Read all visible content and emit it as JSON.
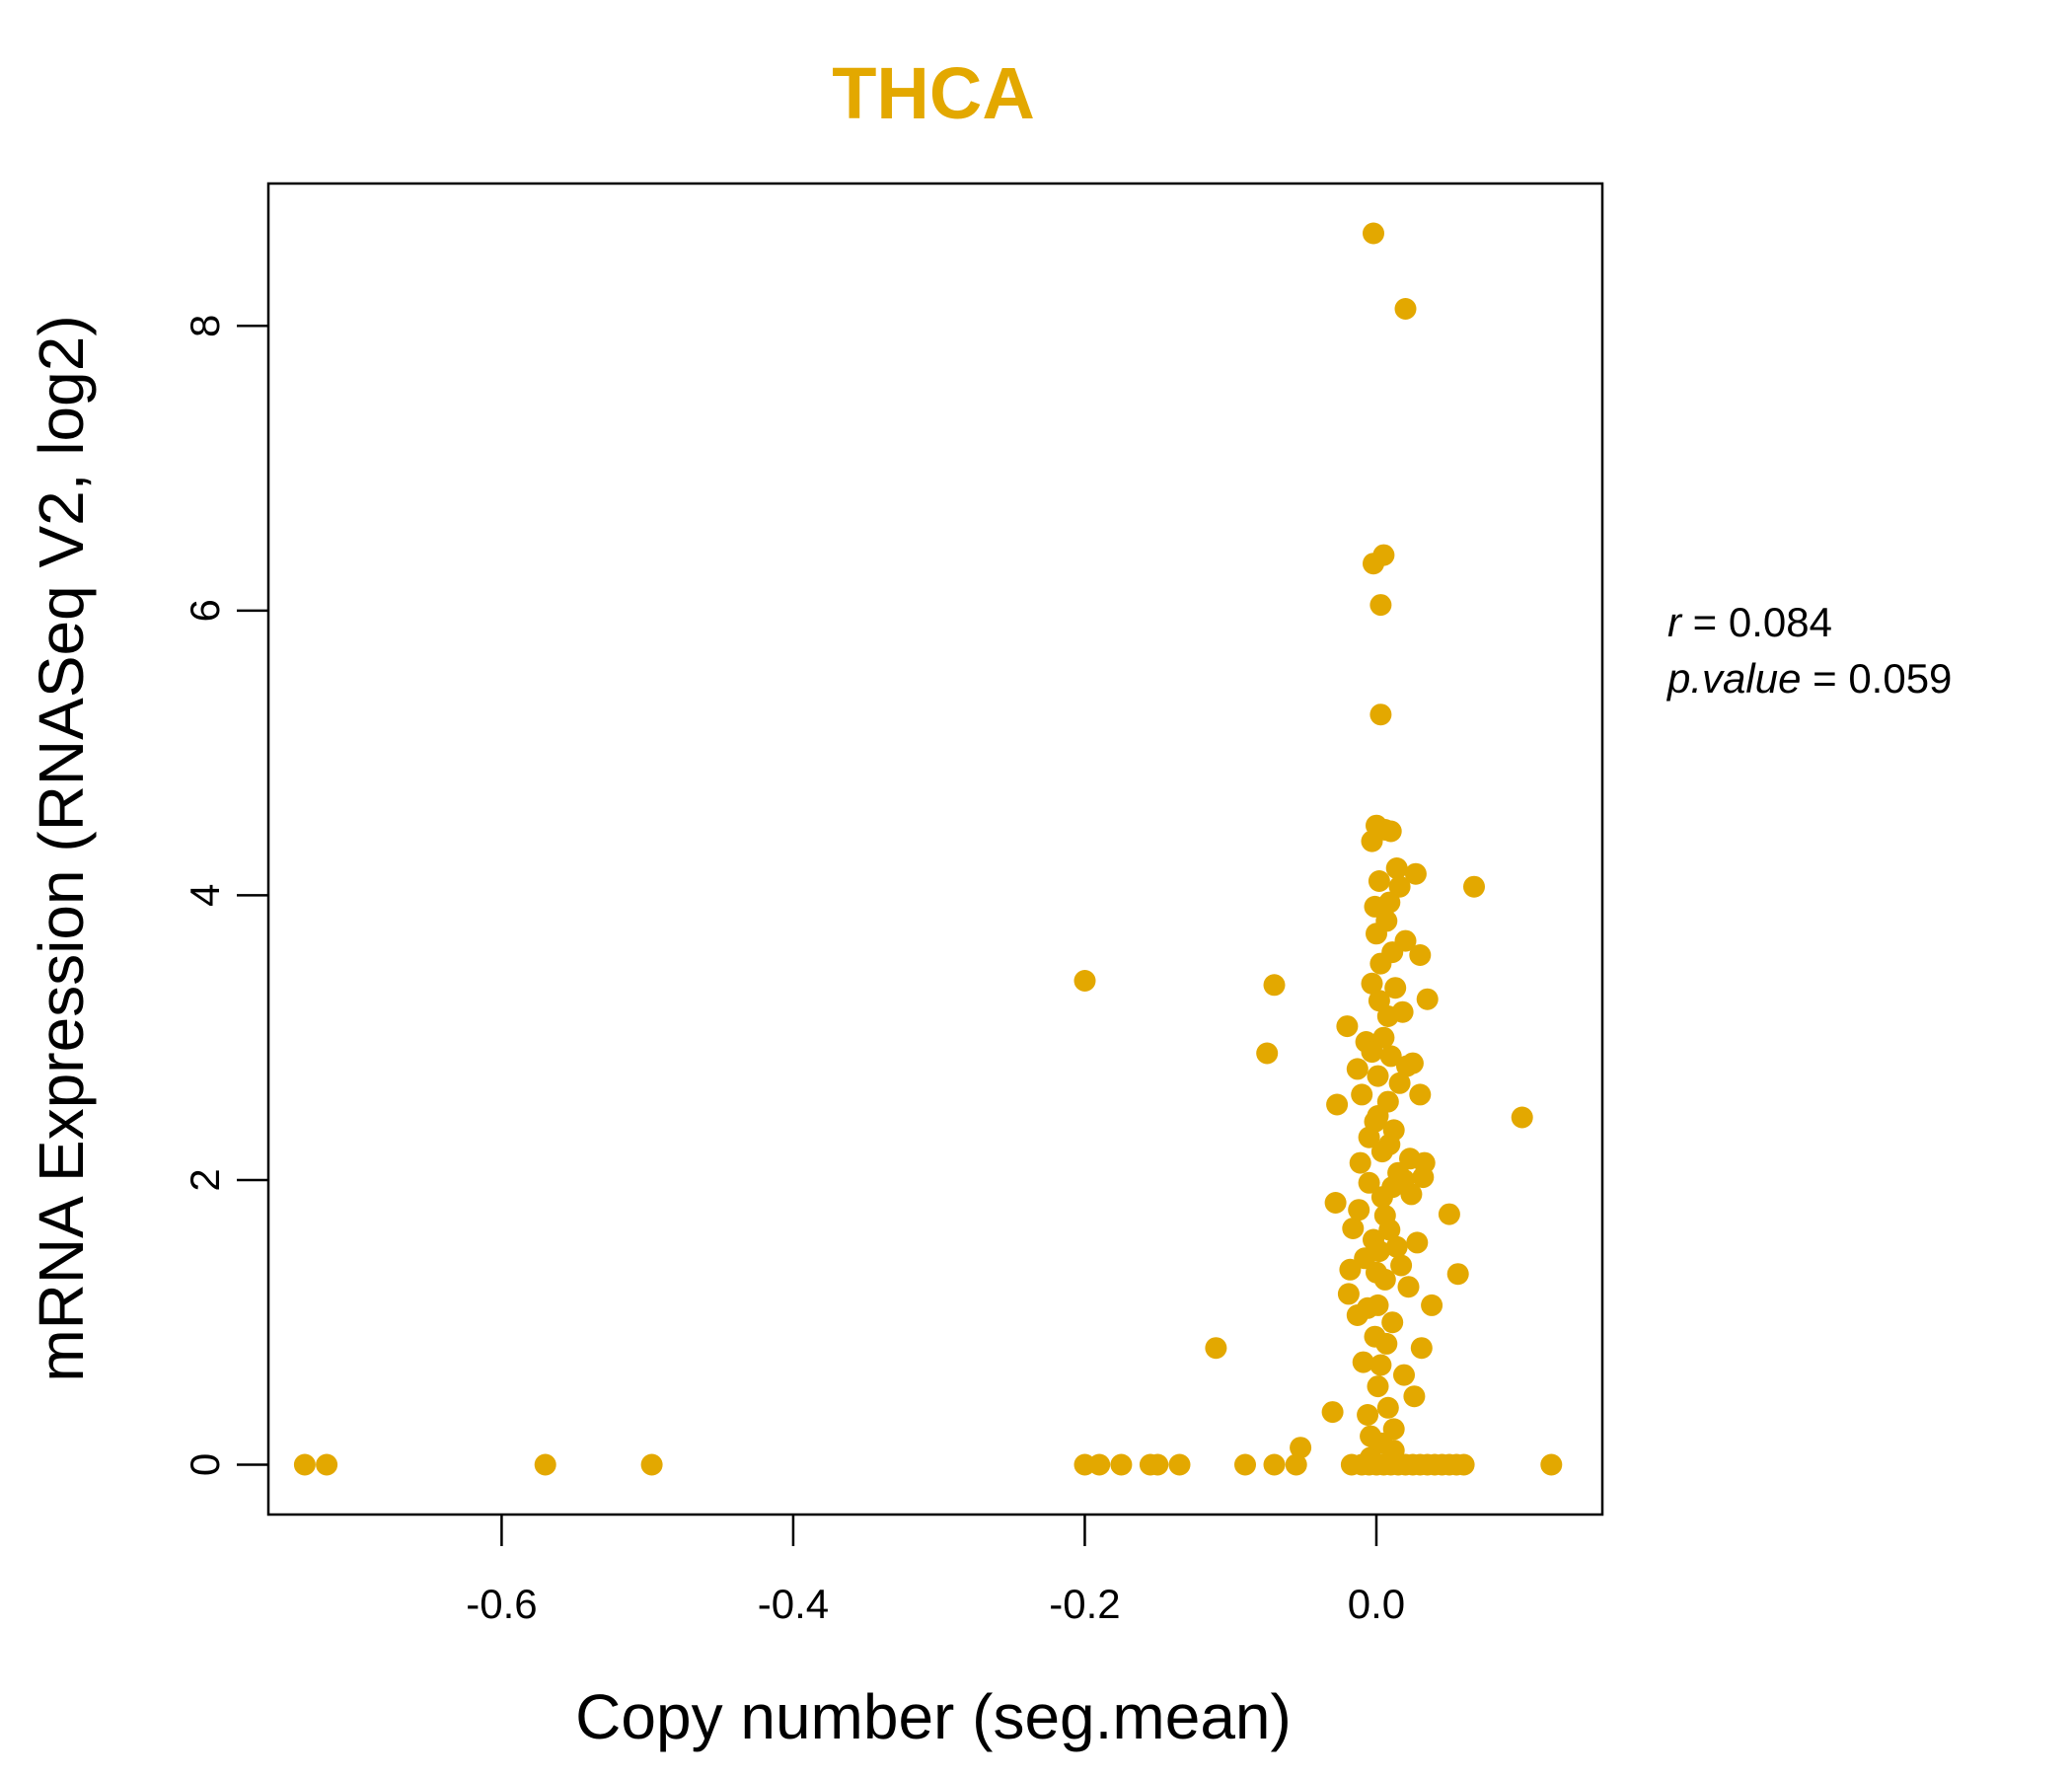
{
  "chart_data": {
    "type": "scatter",
    "title": "THCA",
    "xlabel": "Copy number (seg.mean)",
    "ylabel": "mRNA Expression (RNASeq V2, log2)",
    "xlim": [
      -0.76,
      0.155
    ],
    "ylim": [
      -0.35,
      9.0
    ],
    "x_ticks": [
      -0.6,
      -0.4,
      -0.2,
      0.0
    ],
    "x_tick_labels": [
      "-0.6",
      "-0.4",
      "-0.2",
      "0.0"
    ],
    "y_ticks": [
      0,
      2,
      4,
      6,
      8
    ],
    "y_tick_labels": [
      "0",
      "2",
      "4",
      "6",
      "8"
    ],
    "grid": false,
    "legend": "none",
    "point_color": "#E3A800",
    "stats": {
      "r_label": "r",
      "r_value": "0.084",
      "p_label": "p.value",
      "p_value": "0.059"
    },
    "series": [
      {
        "points": [
          [
            -0.735,
            0.0
          ],
          [
            -0.72,
            0.0
          ],
          [
            -0.57,
            0.0
          ],
          [
            -0.497,
            0.0
          ],
          [
            -0.2,
            3.4
          ],
          [
            -0.2,
            0.0
          ],
          [
            -0.19,
            0.0
          ],
          [
            -0.175,
            0.0
          ],
          [
            -0.155,
            0.0
          ],
          [
            -0.15,
            0.0
          ],
          [
            -0.135,
            0.0
          ],
          [
            -0.11,
            0.82
          ],
          [
            -0.09,
            0.0
          ],
          [
            -0.075,
            2.89
          ],
          [
            -0.07,
            3.37
          ],
          [
            -0.07,
            0.0
          ],
          [
            -0.055,
            0.0
          ],
          [
            -0.052,
            0.12
          ],
          [
            -0.03,
            0.37
          ],
          [
            -0.028,
            1.84
          ],
          [
            -0.027,
            2.53
          ],
          [
            -0.02,
            3.08
          ],
          [
            -0.019,
            1.2
          ],
          [
            -0.018,
            1.37
          ],
          [
            -0.017,
            0.0
          ],
          [
            -0.016,
            1.66
          ],
          [
            -0.013,
            2.78
          ],
          [
            -0.013,
            1.05
          ],
          [
            -0.012,
            1.79
          ],
          [
            -0.011,
            2.12
          ],
          [
            -0.01,
            2.6
          ],
          [
            -0.009,
            0.72
          ],
          [
            -0.008,
            1.45
          ],
          [
            -0.007,
            2.97
          ],
          [
            -0.006,
            0.35
          ],
          [
            -0.005,
            1.98
          ],
          [
            -0.005,
            2.3
          ],
          [
            -0.004,
            0.05
          ],
          [
            -0.003,
            4.38
          ],
          [
            -0.003,
            3.38
          ],
          [
            -0.002,
            6.33
          ],
          [
            -0.002,
            1.58
          ],
          [
            -0.001,
            3.92
          ],
          [
            -0.001,
            2.41
          ],
          [
            0.0,
            3.73
          ],
          [
            0.0,
            4.49
          ],
          [
            0.001,
            2.73
          ],
          [
            0.001,
            1.12
          ],
          [
            0.001,
            0.55
          ],
          [
            0.002,
            4.1
          ],
          [
            0.002,
            3.26
          ],
          [
            0.003,
            6.04
          ],
          [
            0.003,
            5.27
          ],
          [
            0.003,
            3.52
          ],
          [
            0.004,
            2.2
          ],
          [
            0.004,
            1.88
          ],
          [
            0.005,
            6.39
          ],
          [
            0.005,
            3.0
          ],
          [
            0.006,
            4.46
          ],
          [
            0.006,
            1.3
          ],
          [
            0.007,
            3.82
          ],
          [
            0.007,
            0.85
          ],
          [
            0.008,
            3.15
          ],
          [
            0.008,
            2.55
          ],
          [
            0.009,
            3.95
          ],
          [
            0.009,
            1.65
          ],
          [
            0.01,
            4.45
          ],
          [
            0.01,
            2.87
          ],
          [
            0.011,
            3.6
          ],
          [
            0.011,
            1.0
          ],
          [
            0.012,
            2.35
          ],
          [
            0.012,
            0.25
          ],
          [
            0.013,
            3.35
          ],
          [
            0.014,
            4.19
          ],
          [
            0.014,
            1.53
          ],
          [
            0.015,
            2.05
          ],
          [
            0.016,
            4.06
          ],
          [
            0.016,
            2.68
          ],
          [
            0.017,
            1.4
          ],
          [
            0.018,
            3.18
          ],
          [
            0.019,
            0.63
          ],
          [
            0.019,
            2.0
          ],
          [
            0.02,
            3.68
          ],
          [
            0.021,
            2.8
          ],
          [
            0.022,
            1.25
          ],
          [
            0.023,
            2.15
          ],
          [
            0.024,
            1.9
          ],
          [
            0.025,
            2.82
          ],
          [
            0.026,
            0.48
          ],
          [
            0.027,
            4.15
          ],
          [
            0.028,
            1.56
          ],
          [
            0.03,
            3.58
          ],
          [
            0.03,
            2.6
          ],
          [
            0.031,
            0.82
          ],
          [
            0.032,
            2.02
          ],
          [
            0.033,
            2.12
          ],
          [
            0.035,
            3.27
          ],
          [
            0.035,
            0.0
          ],
          [
            0.038,
            1.12
          ],
          [
            0.04,
            0.0
          ],
          [
            0.045,
            0.0
          ],
          [
            0.05,
            0.0
          ],
          [
            0.05,
            1.76
          ],
          [
            0.055,
            0.0
          ],
          [
            0.056,
            1.34
          ],
          [
            0.06,
            0.0
          ],
          [
            0.067,
            4.06
          ],
          [
            0.1,
            2.44
          ],
          [
            0.12,
            0.0
          ],
          [
            -0.002,
            8.65
          ],
          [
            0.02,
            8.12
          ],
          [
            -0.01,
            0.0
          ],
          [
            -0.005,
            0.0
          ],
          [
            0.0,
            0.0
          ],
          [
            0.005,
            0.0
          ],
          [
            0.01,
            0.0
          ],
          [
            0.015,
            0.0
          ],
          [
            0.02,
            0.0
          ],
          [
            0.025,
            0.0
          ],
          [
            0.03,
            0.0
          ],
          [
            -0.004,
            0.2
          ],
          [
            0.004,
            0.15
          ],
          [
            0.012,
            0.1
          ],
          [
            -0.001,
            0.9
          ],
          [
            0.006,
            1.75
          ],
          [
            0.001,
            2.45
          ],
          [
            0.008,
            0.4
          ],
          [
            0.002,
            1.5
          ],
          [
            -0.003,
            2.9
          ],
          [
            0.009,
            2.25
          ],
          [
            0.0,
            1.35
          ],
          [
            0.003,
            0.7
          ],
          [
            0.011,
            1.95
          ],
          [
            -0.006,
            1.1
          ]
        ]
      }
    ]
  }
}
